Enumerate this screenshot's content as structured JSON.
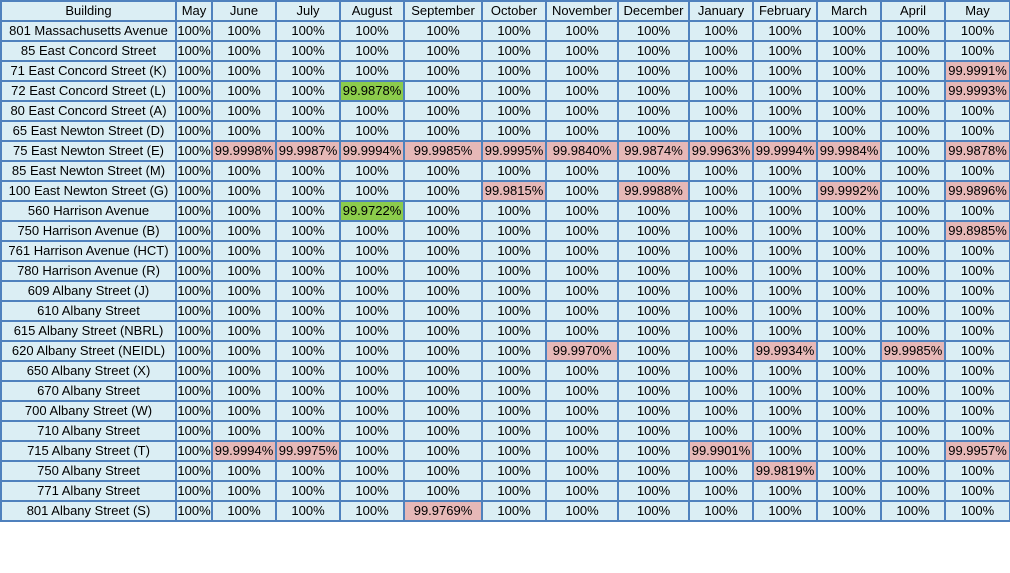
{
  "table": {
    "headers": [
      "Building",
      "May",
      "June",
      "July",
      "August",
      "September",
      "October",
      "November",
      "December",
      "January",
      "February",
      "March",
      "April",
      "May"
    ],
    "rows": [
      {
        "cells": [
          "801 Massachusetts Avenue",
          "100%",
          "100%",
          "100%",
          "100%",
          "100%",
          "100%",
          "100%",
          "100%",
          "100%",
          "100%",
          "100%",
          "100%",
          "100%"
        ],
        "status": [
          "",
          "",
          "",
          "",
          "",
          "",
          "",
          "",
          "",
          "",
          "",
          "",
          "",
          ""
        ]
      },
      {
        "cells": [
          "85 East Concord Street",
          "100%",
          "100%",
          "100%",
          "100%",
          "100%",
          "100%",
          "100%",
          "100%",
          "100%",
          "100%",
          "100%",
          "100%",
          "100%"
        ],
        "status": [
          "",
          "",
          "",
          "",
          "",
          "",
          "",
          "",
          "",
          "",
          "",
          "",
          "",
          ""
        ]
      },
      {
        "cells": [
          "71 East Concord Street (K)",
          "100%",
          "100%",
          "100%",
          "100%",
          "100%",
          "100%",
          "100%",
          "100%",
          "100%",
          "100%",
          "100%",
          "100%",
          "99.9991%"
        ],
        "status": [
          "",
          "",
          "",
          "",
          "",
          "",
          "",
          "",
          "",
          "",
          "",
          "",
          "",
          "pink"
        ]
      },
      {
        "cells": [
          "72 East Concord Street (L)",
          "100%",
          "100%",
          "100%",
          "99.9878%",
          "100%",
          "100%",
          "100%",
          "100%",
          "100%",
          "100%",
          "100%",
          "100%",
          "99.9993%"
        ],
        "status": [
          "",
          "",
          "",
          "",
          "green",
          "",
          "",
          "",
          "",
          "",
          "",
          "",
          "",
          "pink"
        ]
      },
      {
        "cells": [
          "80 East Concord Street (A)",
          "100%",
          "100%",
          "100%",
          "100%",
          "100%",
          "100%",
          "100%",
          "100%",
          "100%",
          "100%",
          "100%",
          "100%",
          "100%"
        ],
        "status": [
          "",
          "",
          "",
          "",
          "",
          "",
          "",
          "",
          "",
          "",
          "",
          "",
          "",
          ""
        ]
      },
      {
        "cells": [
          "65 East Newton Street (D)",
          "100%",
          "100%",
          "100%",
          "100%",
          "100%",
          "100%",
          "100%",
          "100%",
          "100%",
          "100%",
          "100%",
          "100%",
          "100%"
        ],
        "status": [
          "",
          "",
          "",
          "",
          "",
          "",
          "",
          "",
          "",
          "",
          "",
          "",
          "",
          ""
        ]
      },
      {
        "cells": [
          "75 East Newton Street (E)",
          "100%",
          "99.9998%",
          "99.9987%",
          "99.9994%",
          "99.9985%",
          "99.9995%",
          "99.9840%",
          "99.9874%",
          "99.9963%",
          "99.9994%",
          "99.9984%",
          "100%",
          "99.9878%"
        ],
        "status": [
          "",
          "",
          "pink",
          "pink",
          "pink",
          "pink",
          "pink",
          "pink",
          "pink",
          "pink",
          "pink",
          "pink",
          "",
          "pink"
        ]
      },
      {
        "cells": [
          "85 East Newton Street (M)",
          "100%",
          "100%",
          "100%",
          "100%",
          "100%",
          "100%",
          "100%",
          "100%",
          "100%",
          "100%",
          "100%",
          "100%",
          "100%"
        ],
        "status": [
          "",
          "",
          "",
          "",
          "",
          "",
          "",
          "",
          "",
          "",
          "",
          "",
          "",
          ""
        ]
      },
      {
        "cells": [
          "100 East Newton Street (G)",
          "100%",
          "100%",
          "100%",
          "100%",
          "100%",
          "99.9815%",
          "100%",
          "99.9988%",
          "100%",
          "100%",
          "99.9992%",
          "100%",
          "99.9896%"
        ],
        "status": [
          "",
          "",
          "",
          "",
          "",
          "",
          "pink",
          "",
          "pink",
          "",
          "",
          "pink",
          "",
          "pink"
        ]
      },
      {
        "cells": [
          "560 Harrison Avenue",
          "100%",
          "100%",
          "100%",
          "99.9722%",
          "100%",
          "100%",
          "100%",
          "100%",
          "100%",
          "100%",
          "100%",
          "100%",
          "100%"
        ],
        "status": [
          "",
          "",
          "",
          "",
          "green",
          "",
          "",
          "",
          "",
          "",
          "",
          "",
          "",
          ""
        ]
      },
      {
        "cells": [
          "750 Harrison Avenue (B)",
          "100%",
          "100%",
          "100%",
          "100%",
          "100%",
          "100%",
          "100%",
          "100%",
          "100%",
          "100%",
          "100%",
          "100%",
          "99.8985%"
        ],
        "status": [
          "",
          "",
          "",
          "",
          "",
          "",
          "",
          "",
          "",
          "",
          "",
          "",
          "",
          "pink"
        ]
      },
      {
        "cells": [
          "761 Harrison Avenue (HCT)",
          "100%",
          "100%",
          "100%",
          "100%",
          "100%",
          "100%",
          "100%",
          "100%",
          "100%",
          "100%",
          "100%",
          "100%",
          "100%"
        ],
        "status": [
          "",
          "",
          "",
          "",
          "",
          "",
          "",
          "",
          "",
          "",
          "",
          "",
          "",
          ""
        ]
      },
      {
        "cells": [
          "780 Harrison Avenue (R)",
          "100%",
          "100%",
          "100%",
          "100%",
          "100%",
          "100%",
          "100%",
          "100%",
          "100%",
          "100%",
          "100%",
          "100%",
          "100%"
        ],
        "status": [
          "",
          "",
          "",
          "",
          "",
          "",
          "",
          "",
          "",
          "",
          "",
          "",
          "",
          ""
        ]
      },
      {
        "cells": [
          "609 Albany Street (J)",
          "100%",
          "100%",
          "100%",
          "100%",
          "100%",
          "100%",
          "100%",
          "100%",
          "100%",
          "100%",
          "100%",
          "100%",
          "100%"
        ],
        "status": [
          "",
          "",
          "",
          "",
          "",
          "",
          "",
          "",
          "",
          "",
          "",
          "",
          "",
          ""
        ]
      },
      {
        "cells": [
          "610 Albany Street",
          "100%",
          "100%",
          "100%",
          "100%",
          "100%",
          "100%",
          "100%",
          "100%",
          "100%",
          "100%",
          "100%",
          "100%",
          "100%"
        ],
        "status": [
          "",
          "",
          "",
          "",
          "",
          "",
          "",
          "",
          "",
          "",
          "",
          "",
          "",
          ""
        ]
      },
      {
        "cells": [
          "615 Albany Street (NBRL)",
          "100%",
          "100%",
          "100%",
          "100%",
          "100%",
          "100%",
          "100%",
          "100%",
          "100%",
          "100%",
          "100%",
          "100%",
          "100%"
        ],
        "status": [
          "",
          "",
          "",
          "",
          "",
          "",
          "",
          "",
          "",
          "",
          "",
          "",
          "",
          ""
        ]
      },
      {
        "cells": [
          "620 Albany Street (NEIDL)",
          "100%",
          "100%",
          "100%",
          "100%",
          "100%",
          "100%",
          "99.9970%",
          "100%",
          "100%",
          "99.9934%",
          "100%",
          "99.9985%",
          "100%"
        ],
        "status": [
          "",
          "",
          "",
          "",
          "",
          "",
          "",
          "pink",
          "",
          "",
          "pink",
          "",
          "pink",
          ""
        ]
      },
      {
        "cells": [
          "650 Albany Street (X)",
          "100%",
          "100%",
          "100%",
          "100%",
          "100%",
          "100%",
          "100%",
          "100%",
          "100%",
          "100%",
          "100%",
          "100%",
          "100%"
        ],
        "status": [
          "",
          "",
          "",
          "",
          "",
          "",
          "",
          "",
          "",
          "",
          "",
          "",
          "",
          ""
        ]
      },
      {
        "cells": [
          "670 Albany Street",
          "100%",
          "100%",
          "100%",
          "100%",
          "100%",
          "100%",
          "100%",
          "100%",
          "100%",
          "100%",
          "100%",
          "100%",
          "100%"
        ],
        "status": [
          "",
          "",
          "",
          "",
          "",
          "",
          "",
          "",
          "",
          "",
          "",
          "",
          "",
          ""
        ]
      },
      {
        "cells": [
          "700 Albany Street (W)",
          "100%",
          "100%",
          "100%",
          "100%",
          "100%",
          "100%",
          "100%",
          "100%",
          "100%",
          "100%",
          "100%",
          "100%",
          "100%"
        ],
        "status": [
          "",
          "",
          "",
          "",
          "",
          "",
          "",
          "",
          "",
          "",
          "",
          "",
          "",
          ""
        ]
      },
      {
        "cells": [
          "710 Albany Street",
          "100%",
          "100%",
          "100%",
          "100%",
          "100%",
          "100%",
          "100%",
          "100%",
          "100%",
          "100%",
          "100%",
          "100%",
          "100%"
        ],
        "status": [
          "",
          "",
          "",
          "",
          "",
          "",
          "",
          "",
          "",
          "",
          "",
          "",
          "",
          ""
        ]
      },
      {
        "cells": [
          "715 Albany Street (T)",
          "100%",
          "99.9994%",
          "99.9975%",
          "100%",
          "100%",
          "100%",
          "100%",
          "100%",
          "99.9901%",
          "100%",
          "100%",
          "100%",
          "99.9957%"
        ],
        "status": [
          "",
          "",
          "pink",
          "pink",
          "",
          "",
          "",
          "",
          "",
          "pink",
          "",
          "",
          "",
          "pink"
        ]
      },
      {
        "cells": [
          "750 Albany Street",
          "100%",
          "100%",
          "100%",
          "100%",
          "100%",
          "100%",
          "100%",
          "100%",
          "100%",
          "99.9819%",
          "100%",
          "100%",
          "100%"
        ],
        "status": [
          "",
          "",
          "",
          "",
          "",
          "",
          "",
          "",
          "",
          "",
          "pink",
          "",
          "",
          ""
        ]
      },
      {
        "cells": [
          "771 Albany Street",
          "100%",
          "100%",
          "100%",
          "100%",
          "100%",
          "100%",
          "100%",
          "100%",
          "100%",
          "100%",
          "100%",
          "100%",
          "100%"
        ],
        "status": [
          "",
          "",
          "",
          "",
          "",
          "",
          "",
          "",
          "",
          "",
          "",
          "",
          "",
          ""
        ]
      },
      {
        "cells": [
          "801 Albany Street (S)",
          "100%",
          "100%",
          "100%",
          "100%",
          "99.9769%",
          "100%",
          "100%",
          "100%",
          "100%",
          "100%",
          "100%",
          "100%",
          "100%"
        ],
        "status": [
          "",
          "",
          "",
          "",
          "",
          "pink",
          "",
          "",
          "",
          "",
          "",
          "",
          "",
          ""
        ]
      }
    ]
  },
  "colors": {
    "border": "#4f81bd",
    "cell_background": "#dbeef4",
    "pink_highlight": "#e6b8b7",
    "green_highlight": "#8ccc4c"
  }
}
